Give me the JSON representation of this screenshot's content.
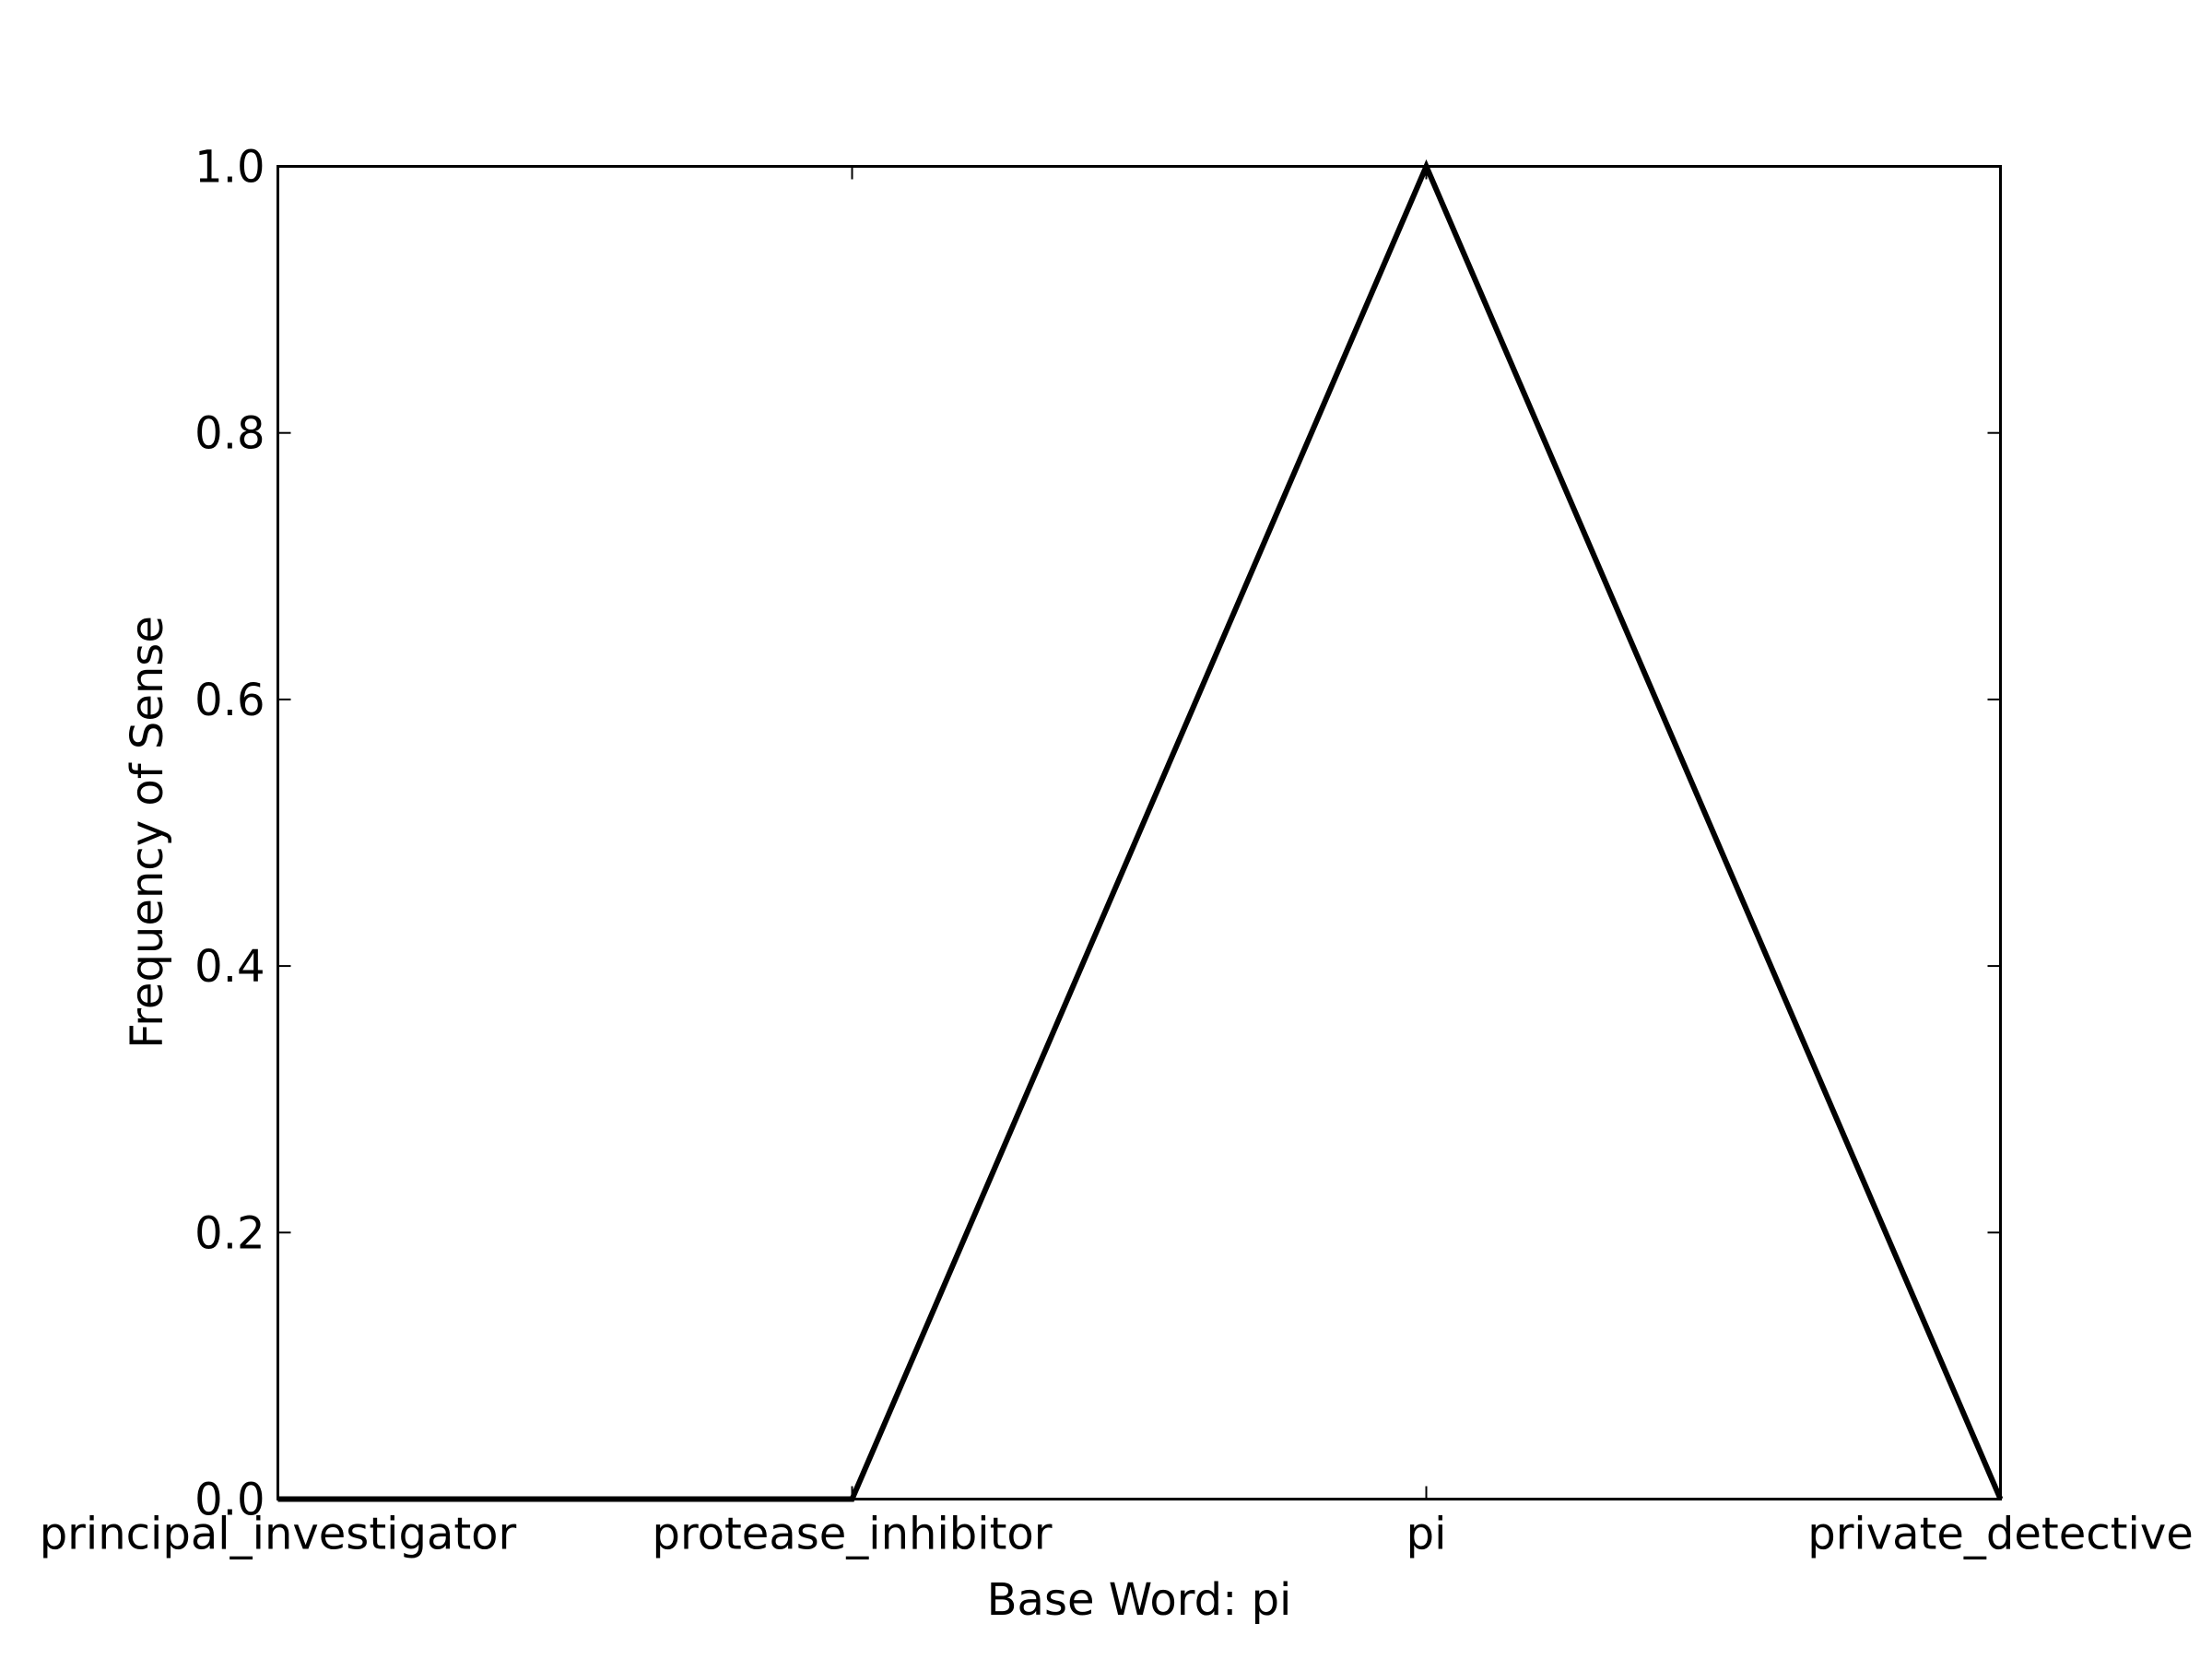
{
  "chart_data": {
    "type": "line",
    "categories": [
      "principal_investigator",
      "protease_inhibitor",
      "pi",
      "private_detective"
    ],
    "series": [
      {
        "values": [
          0.0,
          0.0,
          1.0,
          0.0
        ],
        "color": "#000000"
      }
    ],
    "xlabel": "Base Word: pi",
    "ylabel": "Frequency of Sense",
    "ylim": [
      0.0,
      1.0
    ],
    "yticks": [
      "0.0",
      "0.2",
      "0.4",
      "0.6",
      "0.8",
      "1.0"
    ],
    "grid": false,
    "legend": "none"
  }
}
